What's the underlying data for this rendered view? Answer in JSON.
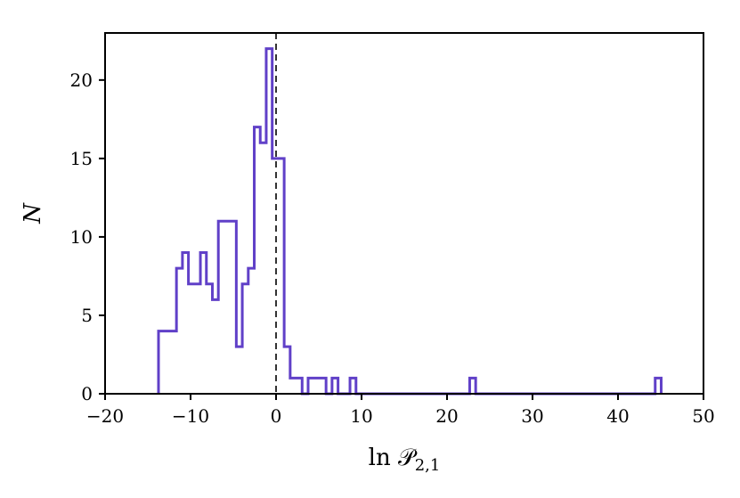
{
  "chart_data": {
    "type": "histogram",
    "title": "",
    "xlabel": "ln 𝒫",
    "xlabel_subscript": "2,1",
    "ylabel": "N",
    "xlim": [
      -20,
      50
    ],
    "ylim": [
      0,
      23
    ],
    "xticks": [
      -20,
      -10,
      0,
      10,
      20,
      30,
      40,
      50
    ],
    "xtick_labels": [
      "−20",
      "−10",
      "0",
      "10",
      "20",
      "30",
      "40",
      "50"
    ],
    "yticks": [
      0,
      5,
      10,
      15,
      20
    ],
    "ytick_labels": [
      "0",
      "5",
      "10",
      "15",
      "20"
    ],
    "grid": false,
    "line_color": "#6040c8",
    "reference_line": {
      "x": 0,
      "style": "dashed",
      "color": "#333333"
    },
    "bin_start": -13.75,
    "bin_width": 0.7,
    "counts": [
      4,
      4,
      4,
      8,
      9,
      7,
      7,
      9,
      7,
      6,
      11,
      11,
      11,
      3,
      7,
      8,
      17,
      16,
      22,
      15,
      15,
      3,
      1,
      1,
      0,
      1,
      1,
      1,
      0,
      1,
      0,
      0,
      1,
      0,
      0,
      0,
      0,
      0,
      0,
      0,
      0,
      0,
      0,
      0,
      0,
      0,
      0,
      0,
      0,
      0,
      0,
      0,
      1,
      0,
      0,
      0,
      0,
      0,
      0,
      0,
      0,
      0,
      0,
      0,
      0,
      0,
      0,
      0,
      0,
      0,
      0,
      0,
      0,
      0,
      0,
      0,
      0,
      0,
      0,
      0,
      0,
      0,
      0,
      1
    ]
  }
}
